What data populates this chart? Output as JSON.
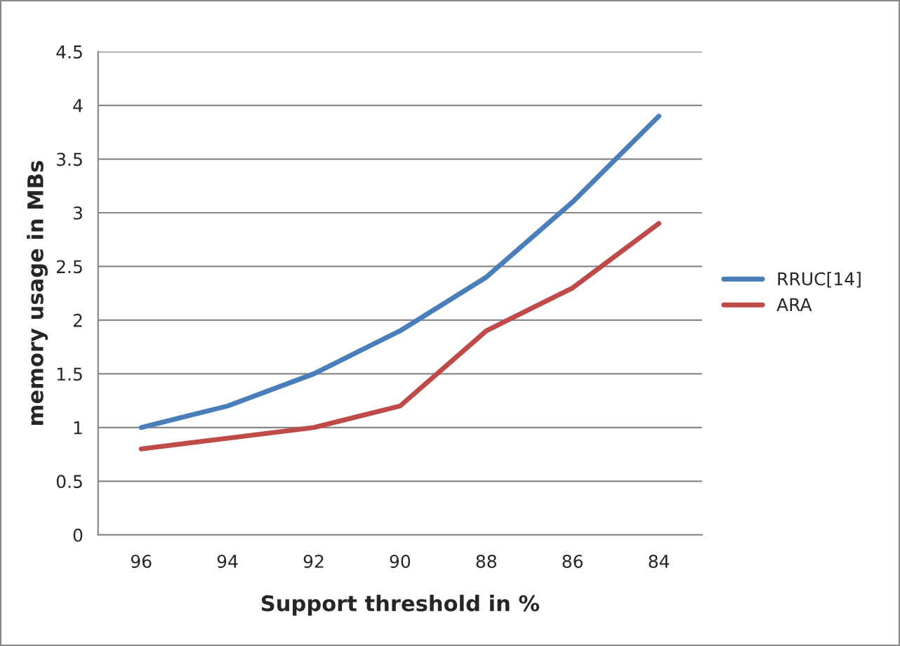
{
  "chart_data": {
    "type": "line",
    "xlabel": "Support threshold in %",
    "ylabel": "memory usage in MBs",
    "categories": [
      "96",
      "94",
      "92",
      "90",
      "88",
      "86",
      "84"
    ],
    "series": [
      {
        "name": "RRUC[14]",
        "color": "#4a7ebb",
        "values": [
          1.0,
          1.2,
          1.5,
          1.9,
          2.4,
          3.1,
          3.9
        ]
      },
      {
        "name": "ARA",
        "color": "#be4b48",
        "values": [
          0.8,
          0.9,
          1.0,
          1.2,
          1.9,
          2.3,
          2.9
        ]
      }
    ],
    "ylim": [
      0,
      4.5
    ],
    "yticks": [
      0,
      0.5,
      1,
      1.5,
      2,
      2.5,
      3,
      3.5,
      4,
      4.5
    ],
    "grid": "y",
    "legend": "right",
    "marker": "none",
    "line_style": "solid"
  }
}
